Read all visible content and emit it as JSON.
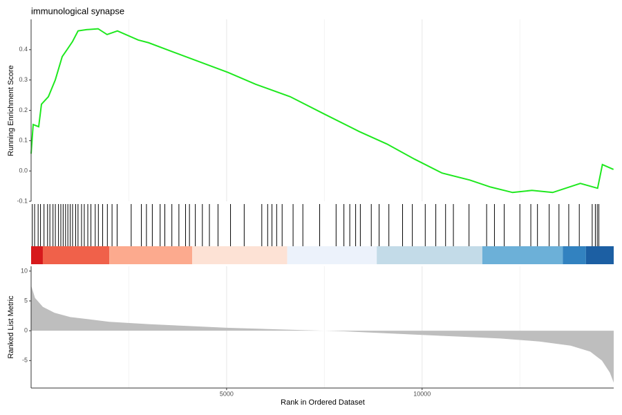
{
  "chart_data": {
    "type": "gsea",
    "title": "immunological synapse",
    "xlabel": "Rank in Ordered Dataset",
    "es_label": "Running Enrichment Score",
    "metric_label": "Ranked List Metric",
    "xlim": [
      0,
      14900
    ],
    "xticks": [
      5000,
      10000
    ],
    "x_minor_grid": [
      2500,
      7500,
      12500
    ],
    "es_ylim": [
      -0.1,
      0.5
    ],
    "es_yticks": [
      -0.1,
      {
        "value": 0,
        "label": "0.0"
      },
      0.1,
      0.2,
      0.3,
      0.4
    ],
    "es_color": "#1ee81e",
    "es_x": [
      0,
      53,
      194,
      265,
      442,
      618,
      795,
      919,
      1060,
      1201,
      1413,
      1714,
      1943,
      2208,
      2739,
      3004,
      3622,
      4329,
      5035,
      5742,
      6625,
      7509,
      8392,
      9099,
      9806,
      10512,
      11219,
      11749,
      12314,
      12809,
      13339,
      14046,
      14488,
      14611,
      14894
    ],
    "es_y": [
      0.057,
      0.153,
      0.146,
      0.22,
      0.245,
      0.3,
      0.377,
      0.4,
      0.427,
      0.462,
      0.466,
      0.469,
      0.45,
      0.462,
      0.432,
      0.423,
      0.393,
      0.359,
      0.325,
      0.286,
      0.245,
      0.187,
      0.13,
      0.089,
      0.039,
      -0.007,
      -0.03,
      -0.053,
      -0.071,
      -0.064,
      -0.071,
      -0.041,
      -0.057,
      0.021,
      0.005
    ],
    "hits": [
      30,
      90,
      180,
      240,
      330,
      420,
      480,
      560,
      620,
      700,
      760,
      820,
      880,
      940,
      1000,
      1060,
      1140,
      1200,
      1290,
      1360,
      1450,
      1530,
      1640,
      1720,
      1830,
      1950,
      2070,
      2200,
      2560,
      2820,
      2950,
      3100,
      3300,
      3420,
      3600,
      3780,
      3950,
      4050,
      4200,
      4380,
      4560,
      4780,
      5100,
      5450,
      5900,
      6050,
      6160,
      6280,
      6420,
      6700,
      6950,
      7380,
      7800,
      8000,
      8150,
      8300,
      8420,
      8700,
      8900,
      9150,
      9500,
      9750,
      10080,
      10350,
      10600,
      10800,
      11200,
      11650,
      11850,
      12100,
      12500,
      12780,
      12950,
      13250,
      13500,
      13750,
      14020,
      14350,
      14430,
      14480,
      14520
    ],
    "hit_color": "#000000",
    "band_bins": [
      0,
      300,
      2000,
      4120,
      6550,
      8840,
      11540,
      13600,
      14190,
      14900
    ],
    "band_colors": [
      "#d7191c",
      "#f0614a",
      "#fcaa8e",
      "#fde2d5",
      "#ecf2fb",
      "#c3dbe8",
      "#6cb0d8",
      "#3282c0",
      "#1c5fa3"
    ],
    "metric_ylim": [
      -9.6,
      10.8
    ],
    "metric_yticks": [
      -5,
      0,
      5,
      10
    ],
    "metric_color": "#bebebe",
    "metric_x": [
      0,
      100,
      300,
      600,
      1000,
      2000,
      3000,
      4000,
      5000,
      6000,
      7000,
      7500,
      8000,
      9000,
      10000,
      11000,
      12000,
      13000,
      13800,
      14300,
      14600,
      14800,
      14900
    ],
    "metric_y": [
      7.6,
      5.5,
      4,
      3,
      2.3,
      1.5,
      1.1,
      0.8,
      0.5,
      0.3,
      0.1,
      0,
      -0.1,
      -0.4,
      -0.7,
      -1,
      -1.3,
      -1.8,
      -2.5,
      -3.5,
      -5,
      -7,
      -8.7
    ]
  }
}
